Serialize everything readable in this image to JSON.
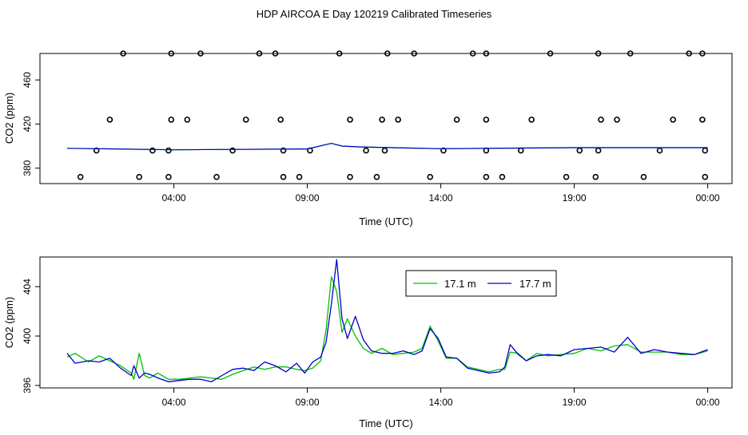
{
  "title": "HDP AIRCOA E  Day 120219  Calibrated Timeseries",
  "colors": {
    "axis": "#000000",
    "series_17_1": "#00c000",
    "series_17_7": "#0000cc"
  },
  "chart_data": [
    {
      "type": "scatter",
      "title": "",
      "xlabel": "Time (UTC)",
      "ylabel": "CO2 (ppm)",
      "x_ticks": [
        "04:00",
        "09:00",
        "14:00",
        "19:00",
        "00:00"
      ],
      "x_tick_hours": [
        4,
        9,
        14,
        19,
        24
      ],
      "xlim_hours": [
        0,
        24.3
      ],
      "y_ticks": [
        380,
        420,
        460
      ],
      "ylim": [
        366,
        484
      ],
      "grid": false,
      "points_hours": {
        "y372": [
          0.5,
          2.7,
          3.8,
          5.6,
          8.1,
          8.7,
          10.6,
          11.6,
          13.6,
          15.7,
          16.3,
          18.7,
          19.8,
          21.6,
          23.9
        ],
        "y396": [
          1.1,
          3.2,
          3.8,
          6.2,
          8.1,
          9.1,
          11.2,
          11.9,
          14.1,
          15.7,
          17.0,
          19.2,
          19.9,
          22.2,
          23.9
        ],
        "y424": [
          1.6,
          3.9,
          4.5,
          6.7,
          8.0,
          10.6,
          11.8,
          12.4,
          14.6,
          15.7,
          17.4,
          20.0,
          20.6,
          22.7,
          23.8
        ],
        "y484": [
          2.1,
          3.9,
          5.0,
          7.2,
          7.8,
          10.2,
          12.0,
          13.0,
          15.2,
          15.7,
          18.1,
          19.9,
          21.1,
          23.3,
          23.8
        ]
      },
      "series": [
        {
          "x": [
            0.0,
            4.0,
            9.0,
            9.9,
            10.3,
            11.0,
            14.0,
            19.0,
            24.0
          ],
          "values": [
            398.0,
            396.6,
            397.4,
            402.5,
            400.0,
            399.2,
            397.6,
            398.6,
            398.6
          ]
        }
      ]
    },
    {
      "type": "line",
      "title": "",
      "xlabel": "Time (UTC)",
      "ylabel": "CO2 (ppm)",
      "x_ticks": [
        "04:00",
        "09:00",
        "14:00",
        "19:00",
        "00:00"
      ],
      "x_tick_hours": [
        4,
        9,
        14,
        19,
        24
      ],
      "xlim_hours": [
        0,
        24.3
      ],
      "y_ticks": [
        396,
        400,
        404
      ],
      "ylim": [
        395.8,
        406.4
      ],
      "grid": false,
      "legend_position": "top-center",
      "series": [
        {
          "name": "17.1 m",
          "x": [
            0.0,
            0.3,
            0.8,
            1.2,
            1.6,
            2.0,
            2.4,
            2.5,
            2.7,
            2.9,
            3.1,
            3.4,
            3.8,
            4.2,
            4.6,
            5.0,
            5.4,
            5.8,
            6.2,
            6.6,
            7.0,
            7.4,
            7.8,
            8.2,
            8.6,
            8.9,
            9.2,
            9.5,
            9.7,
            9.9,
            10.1,
            10.3,
            10.5,
            10.8,
            11.1,
            11.4,
            11.8,
            12.2,
            12.6,
            13.0,
            13.3,
            13.6,
            13.9,
            14.2,
            14.6,
            15.0,
            15.4,
            15.8,
            16.2,
            16.4,
            16.6,
            16.9,
            17.2,
            17.6,
            18.0,
            18.5,
            19.0,
            19.5,
            20.0,
            20.5,
            21.0,
            21.5,
            22.0,
            22.5,
            23.0,
            23.5,
            24.0
          ],
          "values": [
            398.3,
            398.6,
            397.9,
            398.4,
            398.0,
            397.6,
            397.0,
            396.5,
            398.6,
            396.8,
            396.6,
            397.0,
            396.5,
            396.5,
            396.6,
            396.7,
            396.6,
            396.5,
            396.9,
            397.2,
            397.5,
            397.3,
            397.5,
            397.5,
            397.3,
            397.2,
            397.4,
            398.0,
            400.5,
            404.8,
            403.6,
            400.3,
            401.4,
            400.0,
            399.0,
            398.6,
            399.0,
            398.5,
            398.6,
            398.7,
            399.0,
            400.8,
            399.6,
            398.2,
            398.2,
            397.5,
            397.3,
            397.1,
            397.3,
            397.3,
            398.7,
            398.6,
            398.0,
            398.6,
            398.4,
            398.5,
            398.6,
            399.0,
            398.8,
            399.2,
            399.3,
            398.7,
            398.7,
            398.7,
            398.5,
            398.5,
            398.8
          ]
        },
        {
          "name": "17.7 m",
          "x": [
            0.0,
            0.3,
            0.8,
            1.2,
            1.6,
            2.0,
            2.4,
            2.5,
            2.7,
            2.9,
            3.1,
            3.4,
            3.8,
            4.2,
            4.6,
            5.0,
            5.4,
            5.8,
            6.2,
            6.6,
            7.0,
            7.4,
            7.8,
            8.2,
            8.6,
            8.9,
            9.2,
            9.5,
            9.7,
            9.9,
            10.1,
            10.3,
            10.5,
            10.8,
            11.1,
            11.4,
            11.8,
            12.2,
            12.6,
            13.0,
            13.3,
            13.6,
            13.9,
            14.2,
            14.6,
            15.0,
            15.4,
            15.8,
            16.2,
            16.4,
            16.6,
            16.9,
            17.2,
            17.6,
            18.0,
            18.5,
            19.0,
            19.5,
            20.0,
            20.5,
            21.0,
            21.5,
            22.0,
            22.5,
            23.0,
            23.5,
            24.0
          ],
          "values": [
            398.6,
            397.8,
            398.0,
            397.9,
            398.2,
            397.4,
            396.8,
            397.6,
            396.6,
            397.0,
            396.9,
            396.6,
            396.3,
            396.4,
            396.5,
            396.5,
            396.3,
            396.8,
            397.3,
            397.4,
            397.2,
            397.9,
            397.6,
            397.1,
            397.8,
            397.0,
            397.9,
            398.3,
            399.5,
            402.6,
            406.2,
            401.4,
            399.8,
            401.6,
            399.7,
            398.8,
            398.6,
            398.6,
            398.8,
            398.5,
            398.8,
            400.6,
            399.8,
            398.3,
            398.2,
            397.4,
            397.2,
            397.0,
            397.1,
            397.5,
            399.3,
            398.5,
            398.0,
            398.4,
            398.5,
            398.4,
            398.9,
            399.0,
            399.1,
            398.7,
            399.9,
            398.6,
            398.9,
            398.7,
            398.6,
            398.5,
            398.9
          ]
        }
      ]
    }
  ]
}
